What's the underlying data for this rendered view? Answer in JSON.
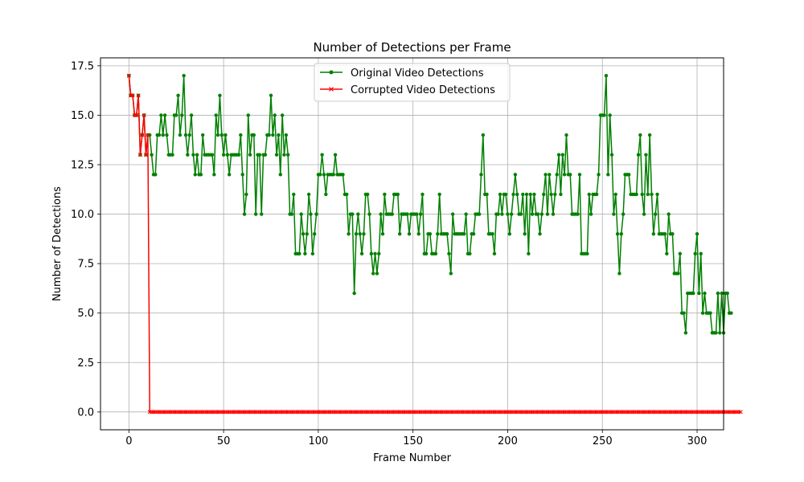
{
  "chart_data": {
    "type": "line",
    "title": "Number of Detections per Frame",
    "xlabel": "Frame Number",
    "ylabel": "Number of Detections",
    "xlim": [
      -15,
      314
    ],
    "ylim": [
      -0.9,
      17.9
    ],
    "xticks": [
      0,
      50,
      100,
      150,
      200,
      250,
      300
    ],
    "yticks": [
      0.0,
      2.5,
      5.0,
      7.5,
      10.0,
      12.5,
      15.0,
      17.5
    ],
    "ytick_labels": [
      "0.0",
      "2.5",
      "5.0",
      "7.5",
      "10.0",
      "12.5",
      "15.0",
      "17.5"
    ],
    "grid": true,
    "legend": "upper center",
    "series": [
      {
        "name": "Original Video Detections",
        "color": "#008000",
        "marker": "circle",
        "x_start": 0,
        "values": [
          17,
          16,
          16,
          15,
          15,
          16,
          13,
          14,
          15,
          13,
          14,
          14,
          13,
          12,
          12,
          14,
          14,
          15,
          14,
          15,
          14,
          13,
          13,
          13,
          15,
          15,
          16,
          14,
          15,
          17,
          14,
          13,
          14,
          15,
          13,
          12,
          13,
          12,
          12,
          14,
          13,
          13,
          13,
          13,
          13,
          12,
          15,
          14,
          16,
          14,
          13,
          14,
          13,
          12,
          13,
          13,
          13,
          13,
          13,
          14,
          12,
          10,
          11,
          15,
          13,
          14,
          14,
          10,
          13,
          13,
          10,
          13,
          13,
          14,
          14,
          16,
          14,
          15,
          13,
          14,
          12,
          15,
          13,
          14,
          13,
          10,
          10,
          11,
          8,
          8,
          8,
          10,
          9,
          8,
          9,
          11,
          10,
          8,
          9,
          10,
          12,
          12,
          13,
          12,
          11,
          12,
          12,
          12,
          12,
          13,
          12,
          12,
          12,
          12,
          11,
          11,
          9,
          10,
          10,
          6,
          9,
          10,
          9,
          8,
          9,
          11,
          11,
          10,
          8,
          7,
          8,
          7,
          8,
          10,
          9,
          11,
          10,
          10,
          10,
          10,
          11,
          11,
          11,
          9,
          10,
          10,
          10,
          10,
          9,
          10,
          10,
          10,
          10,
          9,
          10,
          11,
          8,
          8,
          9,
          9,
          8,
          8,
          8,
          9,
          11,
          9,
          9,
          9,
          9,
          8,
          7,
          10,
          9,
          9,
          9,
          9,
          9,
          9,
          10,
          8,
          8,
          9,
          9,
          10,
          10,
          10,
          12,
          14,
          11,
          11,
          9,
          9,
          9,
          8,
          10,
          10,
          11,
          10,
          11,
          11,
          10,
          9,
          10,
          11,
          12,
          11,
          10,
          10,
          11,
          9,
          11,
          8,
          11,
          10,
          11,
          10,
          10,
          9,
          10,
          11,
          12,
          10,
          12,
          11,
          10,
          11,
          12,
          13,
          11,
          13,
          12,
          14,
          12,
          12,
          10,
          10,
          10,
          10,
          12,
          8,
          8,
          8,
          8,
          11,
          10,
          11,
          11,
          11,
          12,
          15,
          15,
          15,
          17,
          12,
          15,
          13,
          10,
          11,
          9,
          7,
          9,
          10,
          12,
          12,
          12,
          11,
          11,
          11,
          11,
          13,
          14,
          11,
          10,
          13,
          11,
          14,
          11,
          9,
          10,
          11,
          9,
          9,
          9,
          9,
          8,
          10,
          9,
          9,
          7,
          7,
          7,
          8,
          5,
          5,
          4,
          6,
          6,
          6,
          6,
          8,
          9,
          6,
          8,
          5,
          6,
          5,
          5,
          5,
          4,
          4,
          4,
          6,
          4,
          6,
          4,
          6,
          6,
          5,
          5
        ]
      },
      {
        "name": "Corrupted Video Detections",
        "color": "#ff0000",
        "marker": "x",
        "x_start": 0,
        "values": [
          17,
          16,
          16,
          15,
          15,
          16,
          13,
          14,
          15,
          13,
          14,
          0,
          0,
          0,
          0,
          0,
          0,
          0,
          0,
          0,
          0,
          0,
          0,
          0,
          0,
          0,
          0,
          0,
          0,
          0,
          0,
          0,
          0,
          0,
          0,
          0,
          0,
          0,
          0,
          0,
          0,
          0,
          0,
          0,
          0,
          0,
          0,
          0,
          0,
          0,
          0,
          0,
          0,
          0,
          0,
          0,
          0,
          0,
          0,
          0,
          0,
          0,
          0,
          0,
          0,
          0,
          0,
          0,
          0,
          0,
          0,
          0,
          0,
          0,
          0,
          0,
          0,
          0,
          0,
          0,
          0,
          0,
          0,
          0,
          0,
          0,
          0,
          0,
          0,
          0,
          0,
          0,
          0,
          0,
          0,
          0,
          0,
          0,
          0,
          0,
          0,
          0,
          0,
          0,
          0,
          0,
          0,
          0,
          0,
          0,
          0,
          0,
          0,
          0,
          0,
          0,
          0,
          0,
          0,
          0,
          0,
          0,
          0,
          0,
          0,
          0,
          0,
          0,
          0,
          0,
          0,
          0,
          0,
          0,
          0,
          0,
          0,
          0,
          0,
          0,
          0,
          0,
          0,
          0,
          0,
          0,
          0,
          0,
          0,
          0,
          0,
          0,
          0,
          0,
          0,
          0,
          0,
          0,
          0,
          0,
          0,
          0,
          0,
          0,
          0,
          0,
          0,
          0,
          0,
          0,
          0,
          0,
          0,
          0,
          0,
          0,
          0,
          0,
          0,
          0,
          0,
          0,
          0,
          0,
          0,
          0,
          0,
          0,
          0,
          0,
          0,
          0,
          0,
          0,
          0,
          0,
          0,
          0,
          0,
          0,
          0,
          0,
          0,
          0,
          0,
          0,
          0,
          0,
          0,
          0,
          0,
          0,
          0,
          0,
          0,
          0,
          0,
          0,
          0,
          0,
          0,
          0,
          0,
          0,
          0,
          0,
          0,
          0,
          0,
          0,
          0,
          0,
          0,
          0,
          0,
          0,
          0,
          0,
          0,
          0,
          0,
          0,
          0,
          0,
          0,
          0,
          0,
          0,
          0,
          0,
          0,
          0,
          0,
          0,
          0,
          0,
          0,
          0,
          0,
          0,
          0,
          0,
          0,
          0,
          0,
          0,
          0,
          0,
          0,
          0,
          0,
          0,
          0,
          0,
          0,
          0,
          0,
          0,
          0,
          0,
          0,
          0,
          0,
          0,
          0,
          0,
          0,
          0,
          0,
          0,
          0,
          0,
          0,
          0,
          0,
          0,
          0,
          0,
          0,
          0,
          0,
          0,
          0,
          0,
          0,
          0,
          0,
          0,
          0,
          0,
          0,
          0,
          0,
          0,
          0,
          0,
          0,
          0,
          0,
          0,
          0,
          0,
          0,
          0
        ]
      }
    ]
  }
}
